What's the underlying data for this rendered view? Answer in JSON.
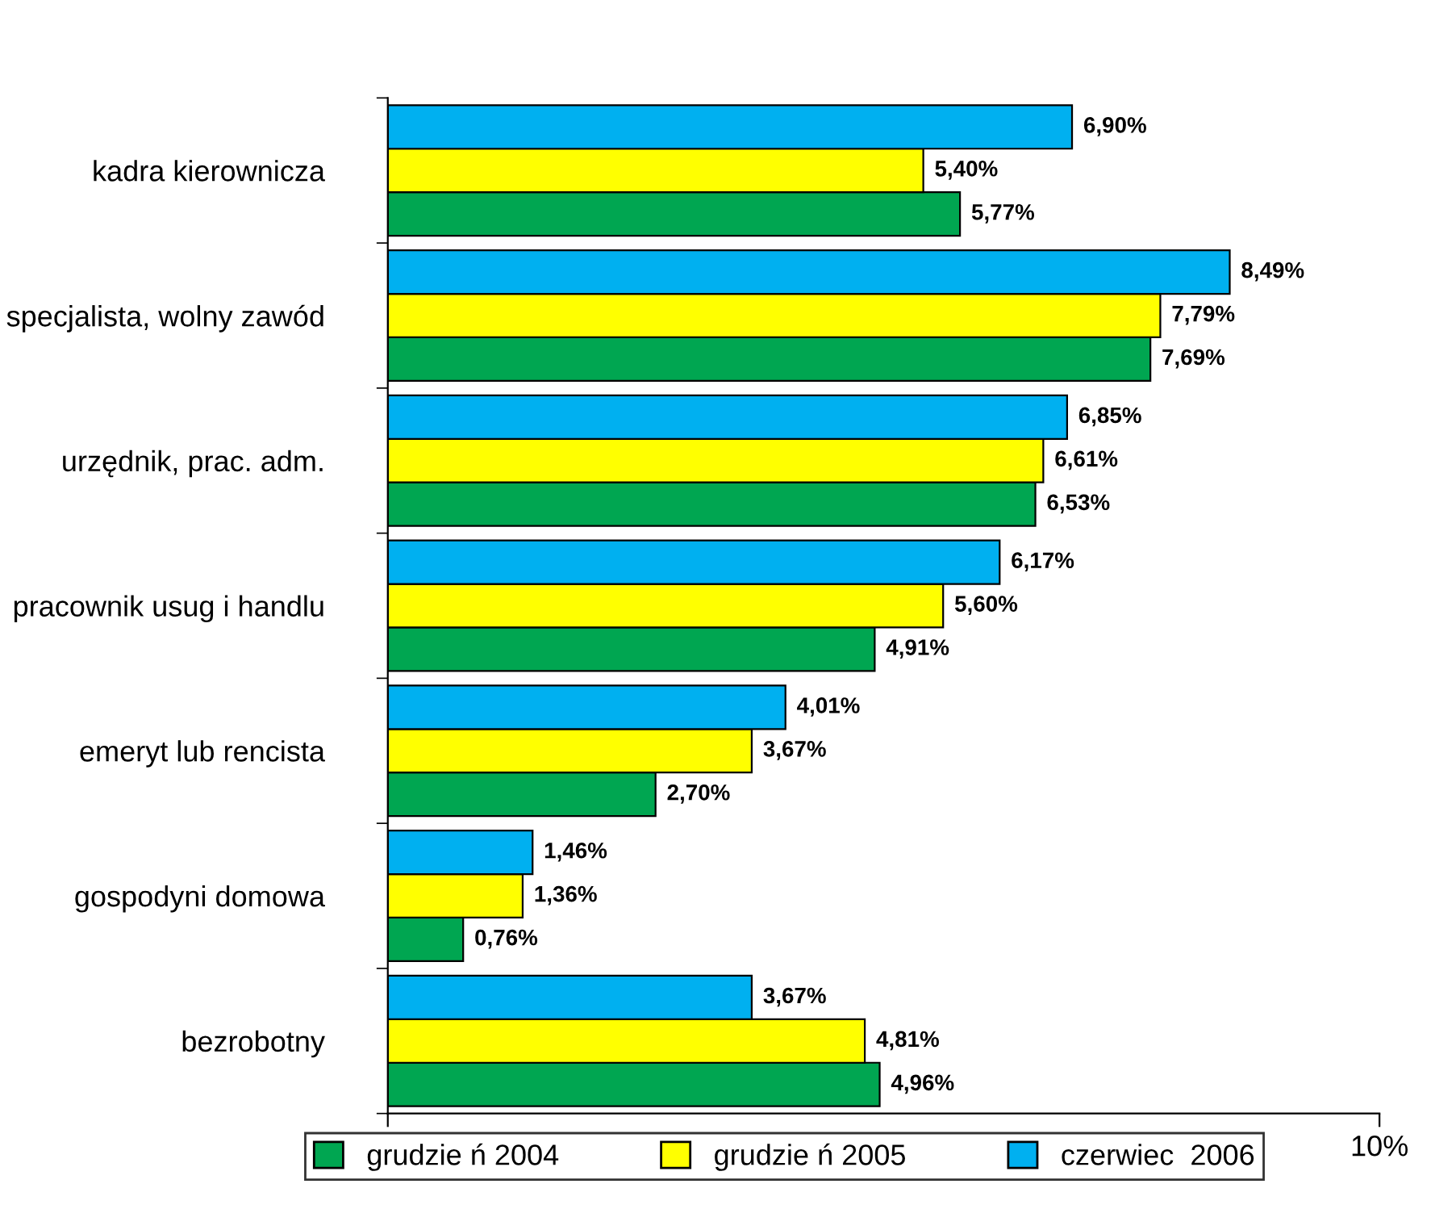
{
  "chart_data": {
    "type": "bar",
    "orientation": "horizontal",
    "categories": [
      "kadra kierownicza",
      "specjalista, wolny zawód",
      "urzędnik, prac. adm.",
      "pracownik usug i handlu",
      "emeryt lub rencista",
      "gospodyni domowa",
      "bezrobotny"
    ],
    "series": [
      {
        "name": "grudzie ń 2004",
        "color": "#00a651",
        "values": [
          5.77,
          7.69,
          6.53,
          4.91,
          2.7,
          0.76,
          4.96
        ],
        "value_labels": [
          "5,77%",
          "7,69%",
          "6,53%",
          "4,91%",
          "2,70%",
          "0,76%",
          "4,96%"
        ]
      },
      {
        "name": "grudzie ń 2005",
        "color": "#ffff00",
        "values": [
          5.4,
          7.79,
          6.61,
          5.6,
          3.67,
          1.36,
          4.81
        ],
        "value_labels": [
          "5,40%",
          "7,79%",
          "6,61%",
          "5,60%",
          "3,67%",
          "1,36%",
          "4,81%"
        ]
      },
      {
        "name": "czerwiec  2006",
        "color": "#00b0f0",
        "values": [
          6.9,
          8.49,
          6.85,
          6.17,
          4.01,
          1.46,
          3.67
        ],
        "value_labels": [
          "6,90%",
          "8,49%",
          "6,85%",
          "6,17%",
          "4,01%",
          "1,46%",
          "3,67%"
        ]
      }
    ],
    "xlim": [
      0,
      10
    ],
    "xticks": [
      {
        "value": 0,
        "label": null
      },
      {
        "value": 10,
        "label": "10%"
      }
    ],
    "grid": false,
    "legend": "bottom"
  }
}
